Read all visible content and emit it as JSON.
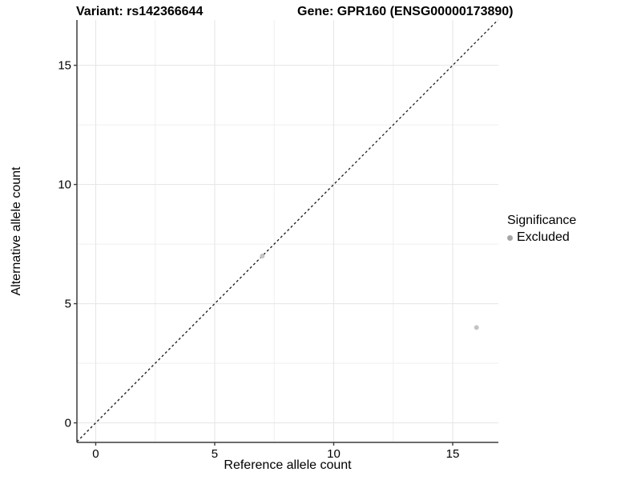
{
  "title": {
    "variant": "Variant: rs142366644",
    "gene": "Gene: GPR160 (ENSG00000173890)"
  },
  "chart_data": {
    "type": "scatter",
    "title_variant": "Variant: rs142366644",
    "title_gene": "Gene: GPR160 (ENSG00000173890)",
    "xlabel": "Reference allele count",
    "ylabel": "Alternative allele count",
    "xlim": [
      -0.79,
      16.92
    ],
    "ylim": [
      -0.82,
      16.9
    ],
    "x_ticks": [
      0,
      5,
      10,
      15
    ],
    "y_ticks": [
      0,
      5,
      10,
      15
    ],
    "x_minor_ticks": [
      2.5,
      7.5,
      12.5
    ],
    "y_minor_ticks": [
      2.5,
      7.5,
      12.5
    ],
    "grid": true,
    "legend_position": "right",
    "reference_line": {
      "type": "identity y=x",
      "style": "dashed",
      "color": "#1c1c1c"
    },
    "series": [
      {
        "name": "Excluded",
        "color": "#c4c4c4",
        "points": [
          {
            "x": 7,
            "y": 7
          },
          {
            "x": 16,
            "y": 4
          }
        ]
      }
    ],
    "legend": {
      "title": "Significance",
      "items": [
        {
          "label": "Excluded",
          "color": "#a6a6a6"
        }
      ]
    }
  },
  "colors": {
    "background": "#ffffff",
    "axis_line": "#3d3d3d",
    "tick_mark": "#3d3d3d",
    "tick_label": "#000000",
    "grid_major": "#e5e5e5",
    "grid_minor": "#efefef",
    "reference_line": "#1c1c1c"
  }
}
